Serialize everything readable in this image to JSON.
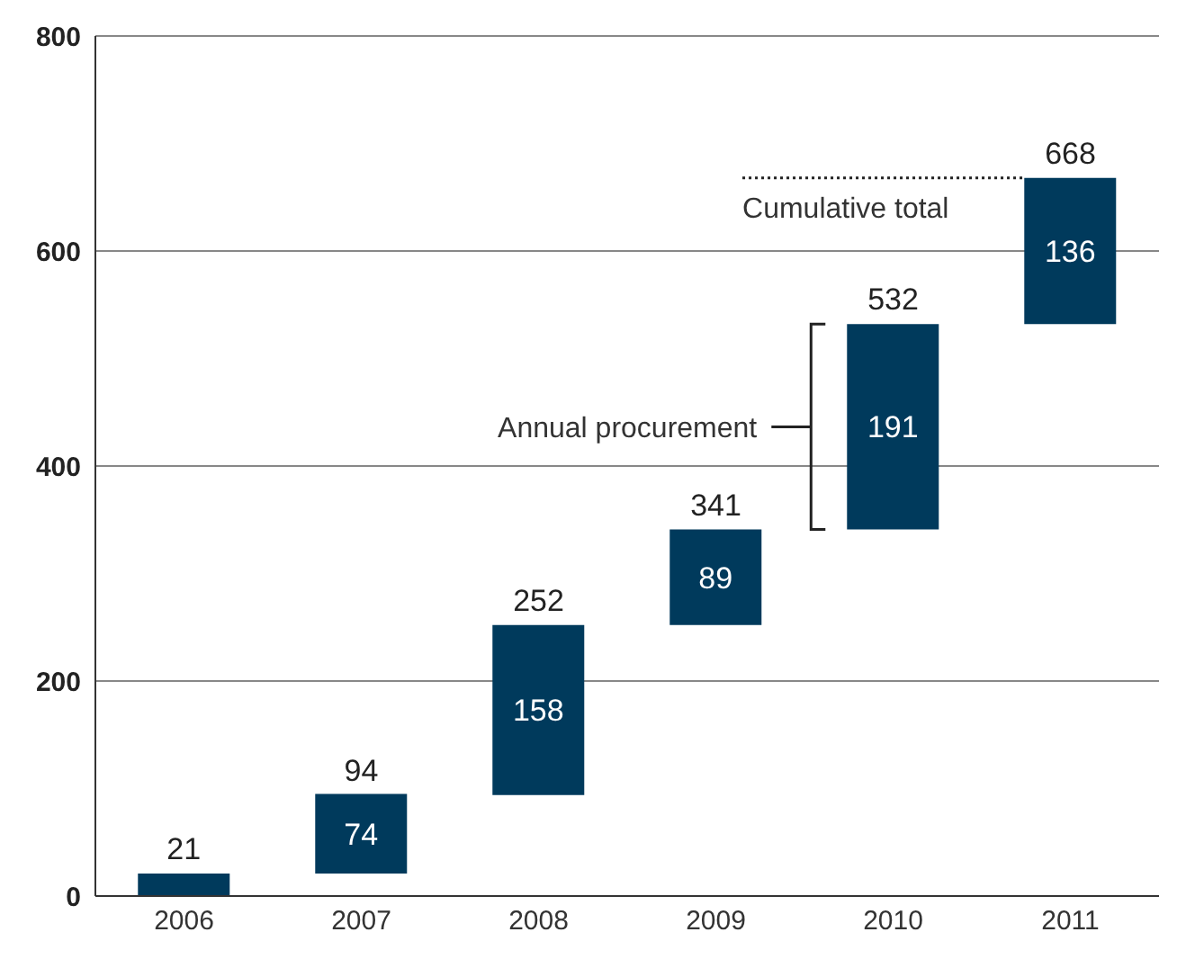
{
  "chart_data": {
    "type": "bar",
    "categories": [
      "2006",
      "2007",
      "2008",
      "2009",
      "2010",
      "2011"
    ],
    "values": [
      21,
      74,
      158,
      89,
      191,
      136
    ],
    "base": [
      0,
      21,
      94,
      252,
      341,
      532
    ],
    "color": "#003a5c",
    "value_labels": [
      "21",
      "74",
      "158",
      "89",
      "191",
      "136"
    ],
    "ylim": [
      0,
      800
    ],
    "yticks": [
      0,
      200,
      400,
      600,
      800
    ],
    "grid": "y",
    "annotations": [
      {
        "text": "94",
        "x": "2007",
        "y": 94
      },
      {
        "text": "252",
        "x": "2008",
        "y": 252
      },
      {
        "text": "341",
        "x": "2009",
        "y": 341
      },
      {
        "text": "532",
        "x": "2010",
        "y": 532
      },
      {
        "text": "668",
        "x": "2011",
        "y": 668
      },
      "Annual procurement"
    ],
    "ref_lines": [
      {
        "axis": "y",
        "value": 668,
        "label": "Cumulative total",
        "line_style": "dotted",
        "color": "#222222"
      }
    ]
  }
}
